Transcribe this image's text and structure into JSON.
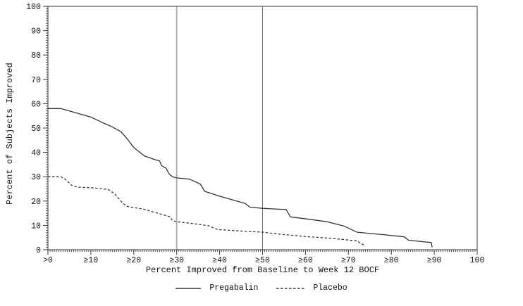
{
  "chart_data": {
    "type": "line",
    "title": "",
    "xlabel": "Percent Improved from Baseline to Week 12 BOCF",
    "ylabel": "Percent of Subjects Improved",
    "xlim": [
      0,
      100
    ],
    "ylim": [
      0,
      100
    ],
    "grid": false,
    "legend_position": "bottom",
    "x_ticks": [
      {
        "value": 0,
        "label": ">0"
      },
      {
        "value": 10,
        "label": "≥10"
      },
      {
        "value": 20,
        "label": "≥20"
      },
      {
        "value": 30,
        "label": "≥30"
      },
      {
        "value": 40,
        "label": "≥40"
      },
      {
        "value": 50,
        "label": "≥50"
      },
      {
        "value": 60,
        "label": "≥60"
      },
      {
        "value": 70,
        "label": "≥70"
      },
      {
        "value": 80,
        "label": "≥80"
      },
      {
        "value": 90,
        "label": "≥90"
      },
      {
        "value": 100,
        "label": "100"
      }
    ],
    "y_ticks": [
      {
        "value": 0,
        "label": "0"
      },
      {
        "value": 10,
        "label": "10"
      },
      {
        "value": 20,
        "label": "20"
      },
      {
        "value": 30,
        "label": "30"
      },
      {
        "value": 40,
        "label": "40"
      },
      {
        "value": 50,
        "label": "50"
      },
      {
        "value": 60,
        "label": "60"
      },
      {
        "value": 70,
        "label": "70"
      },
      {
        "value": 80,
        "label": "80"
      },
      {
        "value": 90,
        "label": "90"
      },
      {
        "value": 100,
        "label": "100"
      }
    ],
    "reference_lines": [
      {
        "x": 30,
        "color": "#b2b2b2",
        "width": 2
      },
      {
        "x": 50,
        "color": "#6e6e6e",
        "width": 1
      }
    ],
    "series": [
      {
        "name": "Pregabalin",
        "style": "solid",
        "color": "#333333",
        "points": [
          [
            0,
            58
          ],
          [
            3,
            58
          ],
          [
            5,
            57
          ],
          [
            10,
            54.5
          ],
          [
            13,
            52
          ],
          [
            15,
            50.5
          ],
          [
            17,
            48.5
          ],
          [
            18.5,
            45.5
          ],
          [
            20,
            42
          ],
          [
            22.5,
            38.5
          ],
          [
            25,
            37
          ],
          [
            26,
            36.5
          ],
          [
            26.5,
            34.5
          ],
          [
            27.5,
            33.5
          ],
          [
            28.3,
            31
          ],
          [
            29,
            30
          ],
          [
            30,
            29.5
          ],
          [
            33,
            29
          ],
          [
            35.5,
            27
          ],
          [
            36.5,
            24
          ],
          [
            40,
            22
          ],
          [
            43,
            20.5
          ],
          [
            46,
            19
          ],
          [
            47,
            17.5
          ],
          [
            50,
            17
          ],
          [
            55.5,
            16.5
          ],
          [
            56.5,
            13.5
          ],
          [
            61,
            12.5
          ],
          [
            65,
            11.5
          ],
          [
            69,
            9.7
          ],
          [
            72,
            7.2
          ],
          [
            78,
            6.2
          ],
          [
            83,
            5.3
          ],
          [
            84,
            3.9
          ],
          [
            88.5,
            3.1
          ],
          [
            89.3,
            3
          ],
          [
            89.5,
            1
          ]
        ]
      },
      {
        "name": "Placebo",
        "style": "dashed",
        "color": "#3a3a3a",
        "points": [
          [
            0,
            30
          ],
          [
            3,
            30
          ],
          [
            4,
            29
          ],
          [
            5.5,
            26.5
          ],
          [
            7,
            25.7
          ],
          [
            10,
            25.5
          ],
          [
            14,
            24.8
          ],
          [
            15.5,
            23
          ],
          [
            16.5,
            21
          ],
          [
            17.5,
            19
          ],
          [
            18.5,
            17.8
          ],
          [
            20,
            17.3
          ],
          [
            22,
            16.8
          ],
          [
            25,
            15.3
          ],
          [
            28.5,
            13.5
          ],
          [
            29,
            12
          ],
          [
            30,
            11.5
          ],
          [
            34,
            10.7
          ],
          [
            37.5,
            9.8
          ],
          [
            39.5,
            8.3
          ],
          [
            43,
            7.9
          ],
          [
            50,
            7.2
          ],
          [
            55,
            6.2
          ],
          [
            61,
            5.3
          ],
          [
            66,
            4.7
          ],
          [
            70,
            4
          ],
          [
            72,
            3.6
          ],
          [
            73,
            2.5
          ],
          [
            74,
            1.6
          ]
        ]
      }
    ]
  },
  "colors": {
    "frame": "#333333",
    "tick": "#333333",
    "text": "#111111",
    "background": "#ffffff"
  }
}
